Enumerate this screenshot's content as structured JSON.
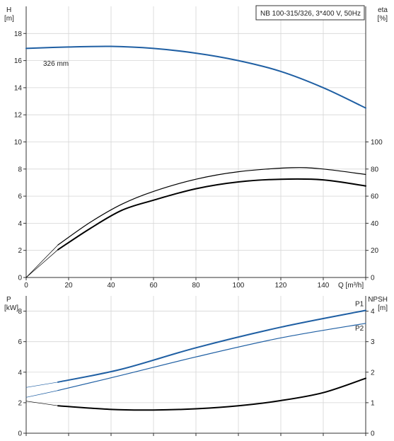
{
  "title": "NB 100-315/326, 3*400 V, 50Hz",
  "curve_label": "326 mm",
  "colors": {
    "blue": "#1f5fa3",
    "black": "#000000"
  },
  "chart_data": [
    {
      "type": "line",
      "panel": "top",
      "xlabel": "Q [m³/h]",
      "xlim": [
        0,
        160
      ],
      "x_ticks": [
        "0",
        "20",
        "40",
        "60",
        "80",
        "100",
        "120",
        "140"
      ],
      "ylabel": [
        "H",
        "[m]"
      ],
      "ylim": [
        0,
        20
      ],
      "y_ticks": [
        "0",
        "2",
        "4",
        "6",
        "8",
        "10",
        "12",
        "14",
        "16",
        "18"
      ],
      "y2label": [
        "eta",
        "[%]"
      ],
      "y2lim": [
        0,
        200
      ],
      "y2_ticks": [
        "0",
        "20",
        "40",
        "60",
        "80",
        "100"
      ],
      "grid": true,
      "series": [
        {
          "name": "326 mm",
          "axis": "y",
          "color": "#1f5fa3",
          "width": 2,
          "x": [
            0,
            20,
            40,
            60,
            80,
            100,
            120,
            140,
            160
          ],
          "y": [
            16.9,
            17.0,
            17.05,
            16.9,
            16.55,
            16.0,
            15.2,
            14.0,
            12.5
          ]
        },
        {
          "axis": "y",
          "color": "#000000",
          "width": 2,
          "x": [
            15,
            30,
            45,
            60,
            80,
            100,
            120,
            140,
            160
          ],
          "y": [
            2.05,
            3.6,
            4.95,
            5.7,
            6.55,
            7.05,
            7.25,
            7.2,
            6.75
          ]
        },
        {
          "axis": "y",
          "color": "#000000",
          "width": 1.2,
          "x": [
            15,
            30,
            45,
            60,
            80,
            100,
            125,
            140,
            160
          ],
          "y": [
            2.4,
            4.05,
            5.4,
            6.35,
            7.25,
            7.8,
            8.1,
            8.0,
            7.6
          ]
        },
        {
          "axis": "y",
          "color": "#000000",
          "width": 0.7,
          "x": [
            0,
            15
          ],
          "y": [
            0,
            2.05
          ]
        },
        {
          "axis": "y",
          "color": "#000000",
          "width": 0.7,
          "x": [
            0,
            15
          ],
          "y": [
            0,
            2.4
          ]
        }
      ]
    },
    {
      "type": "line",
      "panel": "bottom",
      "xlim": [
        0,
        160
      ],
      "ylabel": [
        "P",
        "[kW]"
      ],
      "ylim": [
        0,
        9
      ],
      "y_ticks": [
        "0",
        "2",
        "4",
        "6",
        "8"
      ],
      "y2label": [
        "NPSH",
        "[m]"
      ],
      "y2lim": [
        0,
        4.5
      ],
      "y2_ticks": [
        "0",
        "1",
        "2",
        "3",
        "4"
      ],
      "grid": true,
      "series": [
        {
          "name": "P1",
          "axis": "y",
          "color": "#1f5fa3",
          "width": 2,
          "x": [
            15,
            45,
            80,
            120,
            160
          ],
          "y": [
            3.35,
            4.2,
            5.6,
            6.95,
            8.05
          ]
        },
        {
          "name": "P2",
          "axis": "y",
          "color": "#1f5fa3",
          "width": 1.2,
          "x": [
            15,
            45,
            80,
            120,
            160
          ],
          "y": [
            2.8,
            3.8,
            5.0,
            6.25,
            7.2
          ]
        },
        {
          "axis": "y",
          "color": "#1f5fa3",
          "width": 0.7,
          "x": [
            0,
            15
          ],
          "y": [
            3.0,
            3.35
          ]
        },
        {
          "axis": "y",
          "color": "#1f5fa3",
          "width": 0.7,
          "x": [
            0,
            15
          ],
          "y": [
            2.35,
            2.8
          ]
        },
        {
          "axis": "y2",
          "color": "#000000",
          "width": 2,
          "x": [
            15,
            40,
            60,
            80,
            100,
            120,
            140,
            160
          ],
          "y": [
            0.9,
            0.78,
            0.76,
            0.8,
            0.9,
            1.07,
            1.33,
            1.8
          ]
        },
        {
          "axis": "y2",
          "color": "#000000",
          "width": 0.7,
          "x": [
            0,
            15
          ],
          "y": [
            1.05,
            0.9
          ]
        }
      ]
    }
  ]
}
